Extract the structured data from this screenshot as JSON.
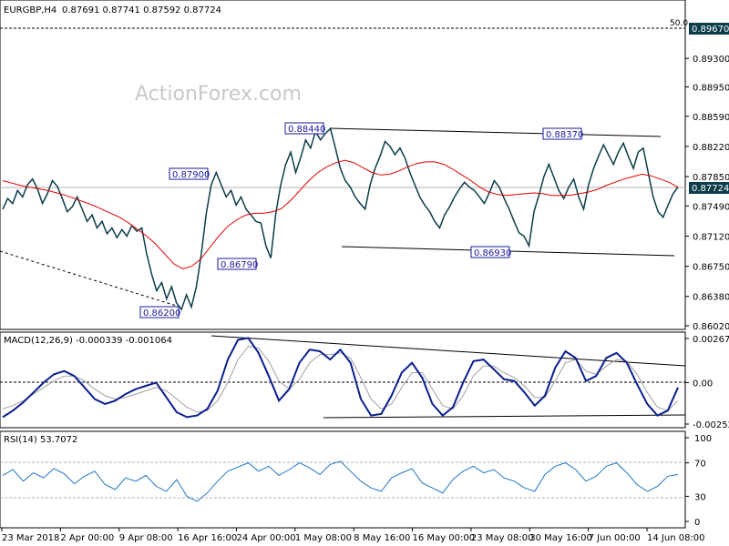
{
  "header": {
    "symbol": "EURGBP,H4",
    "ohlc": "0.87691 0.87741 0.87592 0.87724"
  },
  "watermark": "ActionForex.com",
  "colors": {
    "price": "#0b3d4a",
    "ma": "#e00000",
    "macd": "#0a1f8f",
    "signal": "#a0a0a0",
    "rsi": "#1f77c8",
    "box": "#1a1aa0",
    "grid": "#c8c8c8",
    "current_tag_bg": "#0b3d4a"
  },
  "chart_data": [
    {
      "type": "line",
      "panel": "price",
      "title": "EURGBP,H4",
      "y_axis_ticks": [
        "0.89670",
        "0.89300",
        "0.88950",
        "0.88590",
        "0.88220",
        "0.87850",
        "0.87490",
        "0.87120",
        "0.86750",
        "0.86380",
        "0.86020"
      ],
      "ylim": [
        0.8602,
        0.8967
      ],
      "fib_level": {
        "label": "50.0",
        "value": 0.8967
      },
      "current_price": {
        "label": "0.87724",
        "value": 0.87724
      },
      "annotations": [
        {
          "label": "0.88440",
          "value": 0.8844
        },
        {
          "label": "0.88370",
          "value": 0.8837
        },
        {
          "label": "0.87900",
          "value": 0.879
        },
        {
          "label": "0.86790",
          "value": 0.8679
        },
        {
          "label": "0.86930",
          "value": 0.8693
        },
        {
          "label": "0.86200",
          "value": 0.862
        }
      ],
      "series": [
        {
          "name": "price",
          "values": [
            0.8745,
            0.8758,
            0.8752,
            0.8768,
            0.876,
            0.8775,
            0.8782,
            0.877,
            0.8752,
            0.8764,
            0.878,
            0.8773,
            0.8758,
            0.8742,
            0.8748,
            0.876,
            0.8745,
            0.873,
            0.8738,
            0.8722,
            0.873,
            0.8715,
            0.8722,
            0.871,
            0.872,
            0.8712,
            0.8725,
            0.8718,
            0.8722,
            0.869,
            0.8665,
            0.8645,
            0.8655,
            0.8635,
            0.865,
            0.863,
            0.8622,
            0.864,
            0.8625,
            0.865,
            0.869,
            0.874,
            0.8775,
            0.879,
            0.8775,
            0.876,
            0.8768,
            0.875,
            0.876,
            0.8745,
            0.8738,
            0.873,
            0.8728,
            0.87,
            0.8685,
            0.874,
            0.8775,
            0.88,
            0.8815,
            0.879,
            0.8808,
            0.883,
            0.882,
            0.884,
            0.883,
            0.8838,
            0.8844,
            0.882,
            0.8795,
            0.878,
            0.8772,
            0.876,
            0.8752,
            0.8745,
            0.8775,
            0.8795,
            0.881,
            0.8828,
            0.8822,
            0.8812,
            0.882,
            0.8808,
            0.879,
            0.8775,
            0.876,
            0.875,
            0.8742,
            0.873,
            0.8722,
            0.8738,
            0.8748,
            0.876,
            0.877,
            0.8778,
            0.8772,
            0.8768,
            0.876,
            0.8752,
            0.8765,
            0.878,
            0.8772,
            0.8758,
            0.8745,
            0.873,
            0.8716,
            0.8712,
            0.87,
            0.8742,
            0.8762,
            0.8785,
            0.88,
            0.8784,
            0.8768,
            0.8758,
            0.8772,
            0.8782,
            0.876,
            0.8745,
            0.8775,
            0.8795,
            0.881,
            0.8824,
            0.8812,
            0.88,
            0.8815,
            0.8826,
            0.881,
            0.8795,
            0.8815,
            0.882,
            0.879,
            0.876,
            0.8742,
            0.8735,
            0.875,
            0.8764,
            0.8772
          ]
        },
        {
          "name": "ma",
          "values": [
            0.878,
            0.8777,
            0.8774,
            0.8772,
            0.877,
            0.8768,
            0.8765,
            0.8762,
            0.8758,
            0.8754,
            0.875,
            0.8745,
            0.874,
            0.8735,
            0.8728,
            0.872,
            0.8712,
            0.8702,
            0.869,
            0.8678,
            0.8672,
            0.8675,
            0.8684,
            0.8698,
            0.8712,
            0.8724,
            0.8732,
            0.8738,
            0.874,
            0.874,
            0.8742,
            0.8746,
            0.8756,
            0.8768,
            0.878,
            0.879,
            0.8797,
            0.8802,
            0.8805,
            0.8802,
            0.8796,
            0.879,
            0.8787,
            0.8788,
            0.8792,
            0.8797,
            0.8801,
            0.8803,
            0.8803,
            0.88,
            0.8794,
            0.8787,
            0.878,
            0.8772,
            0.8766,
            0.8763,
            0.8762,
            0.8763,
            0.8764,
            0.8765,
            0.8764,
            0.8762,
            0.8762,
            0.8762,
            0.8764,
            0.8766,
            0.8769,
            0.8774,
            0.8778,
            0.8782,
            0.8785,
            0.8788,
            0.8786,
            0.8782,
            0.8778,
            0.8772
          ]
        }
      ]
    },
    {
      "type": "line",
      "panel": "macd",
      "title": "MACD(12,26,9) -0.000339 -0.001064",
      "y_axis_ticks": [
        "0.002675",
        "0.00",
        "-0.00252"
      ],
      "ylim": [
        -0.00252,
        0.002675
      ],
      "series": [
        {
          "name": "macd",
          "values": [
            -0.0021,
            -0.0017,
            -0.0012,
            -0.0006,
            0.0,
            0.0005,
            0.0007,
            0.0004,
            -0.0003,
            -0.001,
            -0.0013,
            -0.0011,
            -0.0007,
            -0.0004,
            -0.0002,
            0.0,
            -0.0009,
            -0.0018,
            -0.0021,
            -0.002,
            -0.0016,
            -0.0005,
            0.0014,
            0.0026,
            0.0027,
            0.0018,
            0.0004,
            -0.0011,
            -0.0004,
            0.0012,
            0.002,
            0.0019,
            0.0014,
            0.002,
            0.0012,
            -0.001,
            -0.002,
            -0.0019,
            -0.0008,
            0.0006,
            0.0012,
            0.0003,
            -0.0013,
            -0.002,
            -0.0015,
            0.0,
            0.0013,
            0.0014,
            0.0008,
            0.0002,
            0.0001,
            -0.0006,
            -0.0014,
            -0.0008,
            0.0009,
            0.0019,
            0.0015,
            0.0001,
            0.0004,
            0.0015,
            0.0018,
            0.0012,
            -0.0001,
            -0.0013,
            -0.002,
            -0.0017,
            -0.0003
          ]
        },
        {
          "name": "signal",
          "values": [
            -0.0016,
            -0.0014,
            -0.0011,
            -0.0007,
            -0.0003,
            0.0001,
            0.0004,
            0.0004,
            0.0001,
            -0.0004,
            -0.0008,
            -0.001,
            -0.0009,
            -0.0007,
            -0.0005,
            -0.0003,
            -0.0005,
            -0.001,
            -0.0015,
            -0.0018,
            -0.0017,
            -0.0011,
            0.0,
            0.0014,
            0.0022,
            0.0021,
            0.0013,
            0.0001,
            -0.0004,
            0.0002,
            0.0012,
            0.0017,
            0.0017,
            0.0018,
            0.0015,
            0.0003,
            -0.001,
            -0.0016,
            -0.0013,
            -0.0003,
            0.0006,
            0.0006,
            -0.0004,
            -0.0014,
            -0.0016,
            -0.0008,
            0.0004,
            0.001,
            0.001,
            0.0006,
            0.0003,
            -0.0002,
            -0.0009,
            -0.0009,
            0.0001,
            0.0012,
            0.0014,
            0.0007,
            0.0005,
            0.001,
            0.0014,
            0.0013,
            0.0005,
            -0.0006,
            -0.0015,
            -0.0017,
            -0.0011
          ]
        }
      ]
    },
    {
      "type": "line",
      "panel": "rsi",
      "title": "RSI(14) 53.7072",
      "y_axis_ticks": [
        "100",
        "70",
        "30",
        "0"
      ],
      "ylim": [
        0,
        100
      ],
      "series": [
        {
          "name": "rsi",
          "values": [
            55,
            62,
            48,
            58,
            52,
            63,
            57,
            45,
            54,
            60,
            44,
            38,
            52,
            48,
            55,
            42,
            36,
            50,
            30,
            24,
            34,
            48,
            60,
            65,
            70,
            60,
            66,
            55,
            62,
            70,
            64,
            56,
            68,
            72,
            60,
            48,
            40,
            36,
            52,
            58,
            63,
            46,
            40,
            34,
            50,
            60,
            66,
            58,
            62,
            52,
            48,
            40,
            36,
            56,
            66,
            70,
            62,
            48,
            54,
            66,
            70,
            58,
            44,
            36,
            42,
            54,
            56
          ]
        }
      ]
    }
  ],
  "x_axis_labels": [
    "23 Mar 2018",
    "2 Apr 00:00",
    "9 Apr 08:00",
    "16 Apr 16:00",
    "24 Apr 00:00",
    "1 May 08:00",
    "8 May 16:00",
    "16 May 00:00",
    "23 May 08:00",
    "30 May 16:00",
    "7 Jun 00:00",
    "14 Jun 08:00"
  ]
}
